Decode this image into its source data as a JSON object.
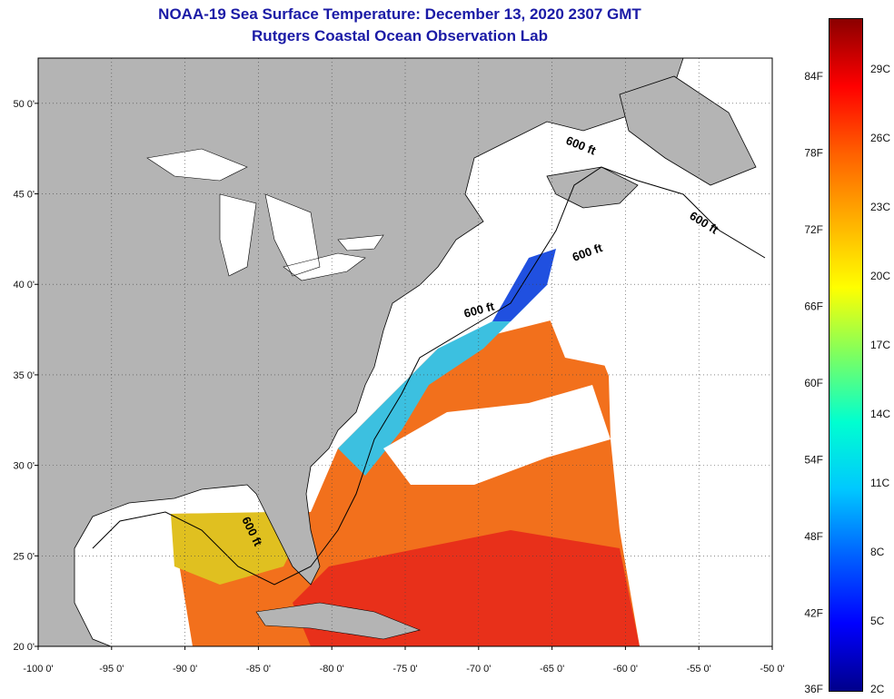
{
  "header": {
    "title": "NOAA-19 Sea Surface Temperature:  December 13, 2020 2307 GMT",
    "subtitle": "Rutgers Coastal Ocean Observation Lab"
  },
  "axes": {
    "lon_labels": [
      "-100 0'",
      "-95 0'",
      "-90 0'",
      "-85 0'",
      "-80 0'",
      "-75 0'",
      "-70 0'",
      "-65 0'",
      "-60 0'",
      "-55 0'",
      "-50 0'"
    ],
    "lon_values": [
      -100,
      -95,
      -90,
      -85,
      -80,
      -75,
      -70,
      -65,
      -60,
      -55,
      -50
    ],
    "lat_labels": [
      "20 0'",
      "25 0'",
      "30 0'",
      "35 0'",
      "40 0'",
      "45 0'",
      "50 0'"
    ],
    "lat_values": [
      20,
      25,
      30,
      35,
      40,
      45,
      50
    ],
    "lon_range": [
      -100,
      -50
    ],
    "lat_range": [
      20,
      52.5
    ],
    "grid": true
  },
  "contour_labels": [
    "600 ft",
    "600 ft",
    "600 ft",
    "600 ft",
    "600 ft"
  ],
  "colorbar": {
    "fahrenheit": [
      "36F",
      "42F",
      "48F",
      "54F",
      "60F",
      "66F",
      "72F",
      "78F",
      "84F"
    ],
    "celsius": [
      "2C",
      "5C",
      "8C",
      "11C",
      "14C",
      "17C",
      "20C",
      "23C",
      "26C",
      "29C"
    ],
    "colors": [
      "#00008b",
      "#0000ff",
      "#0060ff",
      "#00c8ff",
      "#00ffd0",
      "#7dff60",
      "#ffff00",
      "#ffb000",
      "#ff6000",
      "#ff0000",
      "#8b0000"
    ]
  },
  "colors": {
    "land": "#b4b4b4",
    "no_data": "#ffffff",
    "title": "#1a1aa6"
  }
}
